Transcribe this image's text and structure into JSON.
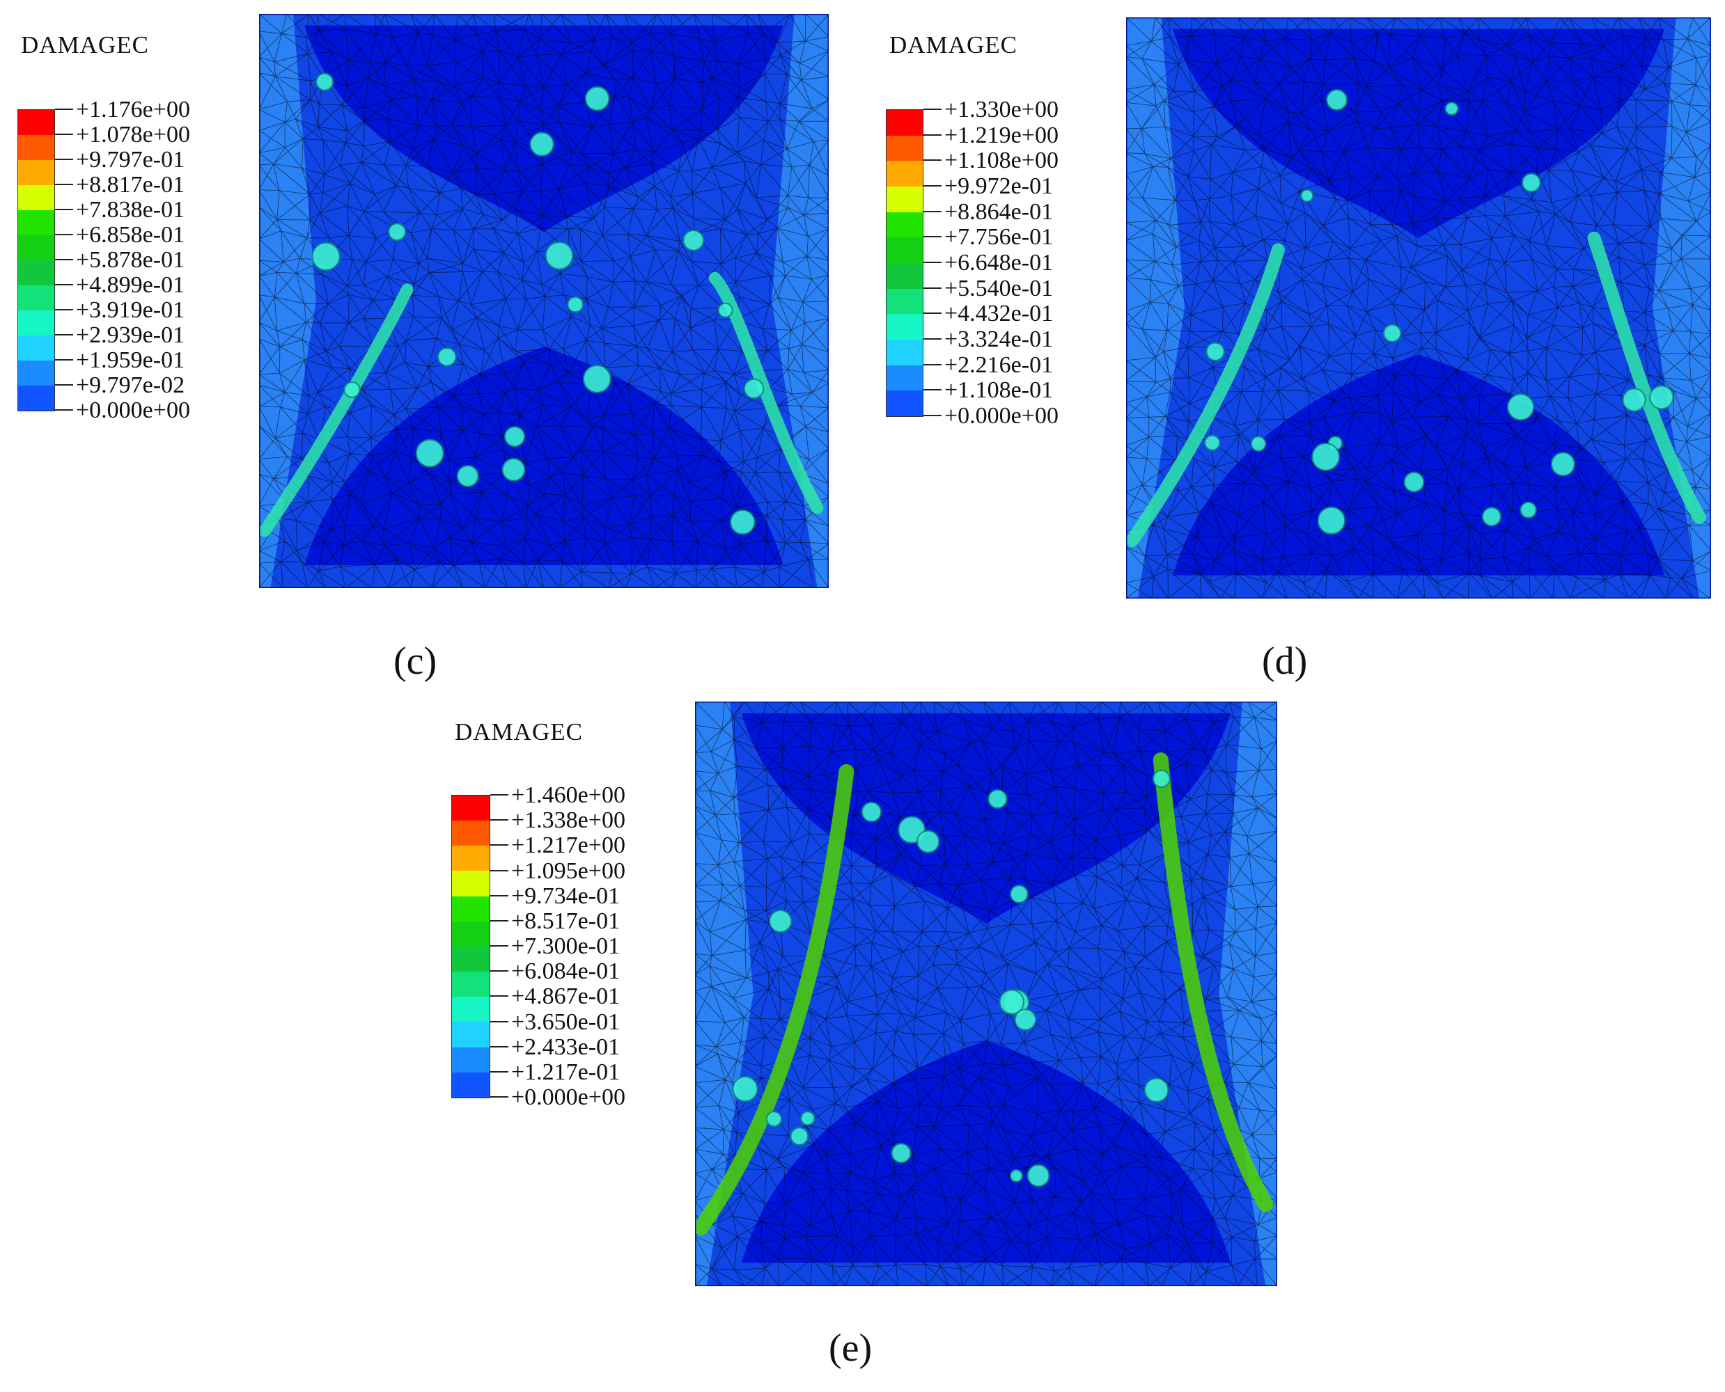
{
  "panels": [
    {
      "id": "c",
      "caption": "(c)",
      "legend": {
        "title": "DAMAGEC",
        "values": [
          "+1.176e+00",
          "+1.078e+00",
          "+9.797e-01",
          "+8.817e-01",
          "+7.838e-01",
          "+6.858e-01",
          "+5.878e-01",
          "+4.899e-01",
          "+3.919e-01",
          "+2.939e-01",
          "+1.959e-01",
          "+9.797e-02",
          "+0.000e+00"
        ]
      },
      "bands": "partial-left-and-right",
      "band_intensity": 0.35
    },
    {
      "id": "d",
      "caption": "(d)",
      "legend": {
        "title": "DAMAGEC",
        "values": [
          "+1.330e+00",
          "+1.219e+00",
          "+1.108e+00",
          "+9.972e-01",
          "+8.864e-01",
          "+7.756e-01",
          "+6.648e-01",
          "+5.540e-01",
          "+4.432e-01",
          "+3.324e-01",
          "+2.216e-01",
          "+1.108e-01",
          "+0.000e+00"
        ]
      },
      "bands": "longer-left-and-right",
      "band_intensity": 0.5
    },
    {
      "id": "e",
      "caption": "(e)",
      "legend": {
        "title": "DAMAGEC",
        "values": [
          "+1.460e+00",
          "+1.338e+00",
          "+1.217e+00",
          "+1.095e+00",
          "+9.734e-01",
          "+8.517e-01",
          "+7.300e-01",
          "+6.084e-01",
          "+4.867e-01",
          "+3.650e-01",
          "+2.433e-01",
          "+1.217e-01",
          "+0.000e+00"
        ]
      },
      "bands": "full-left-and-right",
      "band_intensity": 0.8
    }
  ],
  "colormap": [
    "#ff0000",
    "#ff5a00",
    "#ffaa00",
    "#d7ff00",
    "#22e300",
    "#14cf14",
    "#11c83c",
    "#13e27a",
    "#16f5c4",
    "#1fd2ff",
    "#1a8cff",
    "#1055ff",
    "#0000ff"
  ],
  "colors": {
    "background_deep": "#0014d8",
    "background_mid": "#1046e6",
    "background_light": "#2b82f5",
    "mesh_line": "#000000",
    "band_core": "#2ee7a8",
    "band_hot": "#4ed400"
  }
}
